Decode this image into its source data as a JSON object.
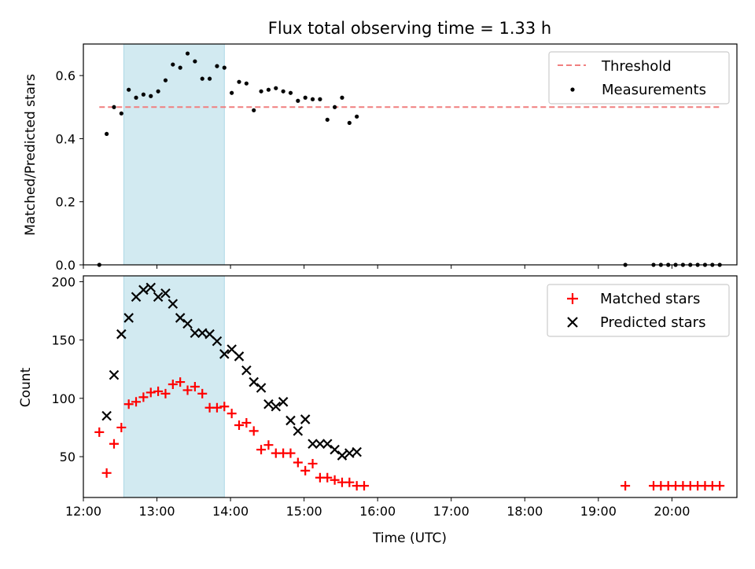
{
  "colors": {
    "threshold": "#f07f7f",
    "measurements": "#000000",
    "matched": "#ff0000",
    "predicted": "#000000",
    "span_fill": "#add8e6"
  },
  "chart_data": [
    {
      "type": "scatter",
      "title": "Flux total observing time = 1.33 h",
      "xlabel": "",
      "ylabel": "Matched/Predicted stars",
      "xlim": [
        "12:00",
        "20:53"
      ],
      "ylim": [
        0.0,
        0.7
      ],
      "yticks": [
        "0.0",
        "0.2",
        "0.4",
        "0.6"
      ],
      "shaded_span": {
        "start": "12:33",
        "end": "13:55"
      },
      "threshold": {
        "name": "Threshold",
        "value": 0.5,
        "x_start": "12:13",
        "x_end": "20:40"
      },
      "legend": {
        "placement": "top-right",
        "entries": [
          "Threshold",
          "Measurements"
        ]
      },
      "series": [
        {
          "name": "Measurements",
          "marker": "dot",
          "points": [
            [
              "12:13",
              0.0
            ],
            [
              "12:19",
              0.415
            ],
            [
              "12:25",
              0.5
            ],
            [
              "12:31",
              0.48
            ],
            [
              "12:37",
              0.555
            ],
            [
              "12:43",
              0.53
            ],
            [
              "12:49",
              0.54
            ],
            [
              "12:55",
              0.535
            ],
            [
              "13:01",
              0.55
            ],
            [
              "13:07",
              0.585
            ],
            [
              "13:13",
              0.635
            ],
            [
              "13:19",
              0.625
            ],
            [
              "13:25",
              0.67
            ],
            [
              "13:31",
              0.645
            ],
            [
              "13:37",
              0.59
            ],
            [
              "13:43",
              0.59
            ],
            [
              "13:49",
              0.63
            ],
            [
              "13:55",
              0.625
            ],
            [
              "14:01",
              0.545
            ],
            [
              "14:07",
              0.58
            ],
            [
              "14:13",
              0.575
            ],
            [
              "14:19",
              0.49
            ],
            [
              "14:25",
              0.55
            ],
            [
              "14:31",
              0.555
            ],
            [
              "14:37",
              0.56
            ],
            [
              "14:43",
              0.55
            ],
            [
              "14:49",
              0.545
            ],
            [
              "14:55",
              0.52
            ],
            [
              "15:01",
              0.53
            ],
            [
              "15:07",
              0.525
            ],
            [
              "15:13",
              0.525
            ],
            [
              "15:19",
              0.46
            ],
            [
              "15:25",
              0.5
            ],
            [
              "15:31",
              0.53
            ],
            [
              "15:37",
              0.45
            ],
            [
              "15:43",
              0.47
            ],
            [
              "19:22",
              0.0
            ],
            [
              "19:45",
              0.0
            ],
            [
              "19:51",
              0.0
            ],
            [
              "19:57",
              0.0
            ],
            [
              "20:03",
              0.0
            ],
            [
              "20:09",
              0.0
            ],
            [
              "20:15",
              0.0
            ],
            [
              "20:21",
              0.0
            ],
            [
              "20:27",
              0.0
            ],
            [
              "20:33",
              0.0
            ],
            [
              "20:39",
              0.0
            ]
          ]
        }
      ]
    },
    {
      "type": "scatter",
      "title": "",
      "xlabel": "Time (UTC)",
      "ylabel": "Count",
      "xlim": [
        "12:00",
        "20:53"
      ],
      "ylim": [
        15,
        205
      ],
      "yticks": [
        "50",
        "100",
        "150",
        "200"
      ],
      "xticks": [
        "12:00",
        "13:00",
        "14:00",
        "15:00",
        "16:00",
        "17:00",
        "18:00",
        "19:00",
        "20:00"
      ],
      "shaded_span": {
        "start": "12:33",
        "end": "13:55"
      },
      "legend": {
        "placement": "top-right",
        "entries": [
          "Matched stars",
          "Predicted stars"
        ]
      },
      "series": [
        {
          "name": "Matched stars",
          "marker": "plus",
          "points": [
            [
              "12:13",
              71
            ],
            [
              "12:19",
              36
            ],
            [
              "12:25",
              61
            ],
            [
              "12:31",
              75
            ],
            [
              "12:37",
              95
            ],
            [
              "12:43",
              97
            ],
            [
              "12:49",
              101
            ],
            [
              "12:55",
              105
            ],
            [
              "13:01",
              106
            ],
            [
              "13:07",
              104
            ],
            [
              "13:13",
              112
            ],
            [
              "13:19",
              114
            ],
            [
              "13:25",
              107
            ],
            [
              "13:31",
              110
            ],
            [
              "13:37",
              104
            ],
            [
              "13:43",
              92
            ],
            [
              "13:49",
              92
            ],
            [
              "13:55",
              93
            ],
            [
              "14:01",
              87
            ],
            [
              "14:07",
              77
            ],
            [
              "14:13",
              79
            ],
            [
              "14:19",
              72
            ],
            [
              "14:25",
              56
            ],
            [
              "14:31",
              60
            ],
            [
              "14:37",
              53
            ],
            [
              "14:43",
              53
            ],
            [
              "14:49",
              53
            ],
            [
              "14:55",
              45
            ],
            [
              "15:01",
              38
            ],
            [
              "15:07",
              44
            ],
            [
              "15:13",
              32
            ],
            [
              "15:19",
              32
            ],
            [
              "15:25",
              30
            ],
            [
              "15:31",
              28
            ],
            [
              "15:37",
              28
            ],
            [
              "15:43",
              25
            ],
            [
              "15:49",
              25
            ],
            [
              "19:22",
              25
            ],
            [
              "19:45",
              25
            ],
            [
              "19:51",
              25
            ],
            [
              "19:57",
              25
            ],
            [
              "20:03",
              25
            ],
            [
              "20:09",
              25
            ],
            [
              "20:15",
              25
            ],
            [
              "20:21",
              25
            ],
            [
              "20:27",
              25
            ],
            [
              "20:33",
              25
            ],
            [
              "20:39",
              25
            ]
          ]
        },
        {
          "name": "Predicted stars",
          "marker": "x",
          "points": [
            [
              "12:19",
              85
            ],
            [
              "12:25",
              120
            ],
            [
              "12:31",
              155
            ],
            [
              "12:37",
              169
            ],
            [
              "12:43",
              187
            ],
            [
              "12:49",
              193
            ],
            [
              "12:55",
              195
            ],
            [
              "13:01",
              187
            ],
            [
              "13:07",
              190
            ],
            [
              "13:13",
              181
            ],
            [
              "13:19",
              169
            ],
            [
              "13:25",
              164
            ],
            [
              "13:31",
              156
            ],
            [
              "13:37",
              156
            ],
            [
              "13:43",
              155
            ],
            [
              "13:49",
              149
            ],
            [
              "13:55",
              138
            ],
            [
              "14:01",
              142
            ],
            [
              "14:07",
              136
            ],
            [
              "14:13",
              124
            ],
            [
              "14:19",
              114
            ],
            [
              "14:25",
              109
            ],
            [
              "14:31",
              95
            ],
            [
              "14:37",
              93
            ],
            [
              "14:43",
              97
            ],
            [
              "14:49",
              81
            ],
            [
              "14:55",
              72
            ],
            [
              "15:01",
              82
            ],
            [
              "15:07",
              61
            ],
            [
              "15:13",
              61
            ],
            [
              "15:19",
              61
            ],
            [
              "15:25",
              56
            ],
            [
              "15:31",
              51
            ],
            [
              "15:37",
              53
            ],
            [
              "15:43",
              54
            ]
          ]
        }
      ]
    }
  ]
}
